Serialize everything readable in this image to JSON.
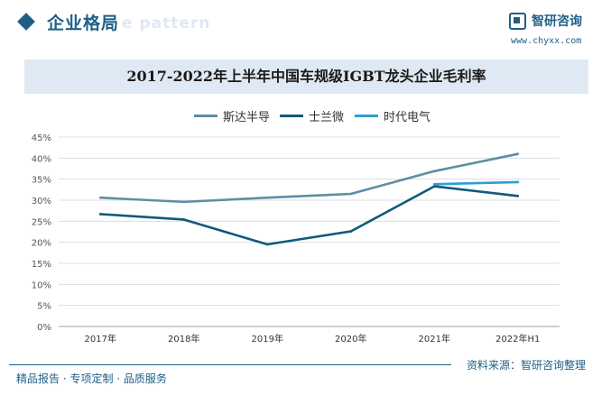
{
  "header": {
    "title": "企业格局",
    "watermark": "e pattern"
  },
  "logo": {
    "name": "智研咨询",
    "url": "www.chyxx.com"
  },
  "footer": {
    "left": "精品报告 · 专项定制 · 品质服务",
    "source": "资料来源：智研咨询整理"
  },
  "colors": {
    "accent": "#1f5f86",
    "title_band": "#dfe9f3"
  },
  "chart_data": {
    "type": "line",
    "title": "2017-2022年上半年中国车规级IGBT龙头企业毛利率",
    "categories": [
      "2017年",
      "2018年",
      "2019年",
      "2020年",
      "2021年",
      "2022年H1"
    ],
    "y_ticks": [
      "0%",
      "5%",
      "10%",
      "15%",
      "20%",
      "25%",
      "30%",
      "35%",
      "40%",
      "45%"
    ],
    "ylim": [
      0,
      45
    ],
    "grid": true,
    "legend_position": "top-center",
    "series": [
      {
        "name": "斯达半导",
        "color": "#5f8ea5",
        "values": [
          30.6,
          29.6,
          30.6,
          31.5,
          36.9,
          41.0
        ]
      },
      {
        "name": "士兰微",
        "color": "#0f5a7d",
        "values": [
          26.7,
          25.4,
          19.5,
          22.6,
          33.3,
          31.0
        ]
      },
      {
        "name": "时代电气",
        "color": "#2e9fd0",
        "values": [
          null,
          null,
          null,
          null,
          33.8,
          34.3
        ]
      }
    ]
  }
}
